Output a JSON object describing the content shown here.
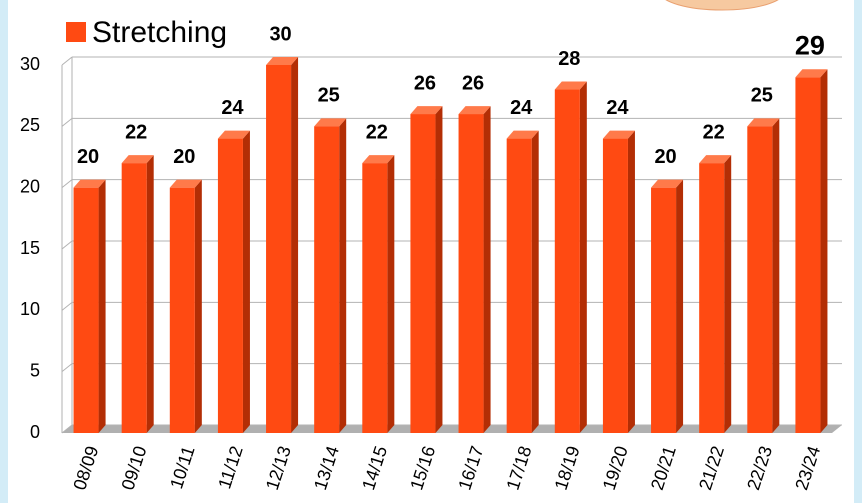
{
  "chart_data": {
    "type": "bar",
    "legend": "Stretching",
    "categories": [
      "08/09",
      "09/10",
      "10/11",
      "11/12",
      "12/13",
      "13/14",
      "14/15",
      "15/16",
      "16/17",
      "17/18",
      "18/19",
      "19/20",
      "20/21",
      "21/22",
      "22/23",
      "23/24"
    ],
    "values": [
      20,
      22,
      20,
      24,
      30,
      25,
      22,
      26,
      26,
      24,
      28,
      24,
      20,
      22,
      25,
      29
    ],
    "color": "#ff4a12",
    "ylim": [
      0,
      30
    ],
    "yticks": [
      0,
      5,
      10,
      15,
      20,
      25,
      30
    ],
    "grid": true
  }
}
